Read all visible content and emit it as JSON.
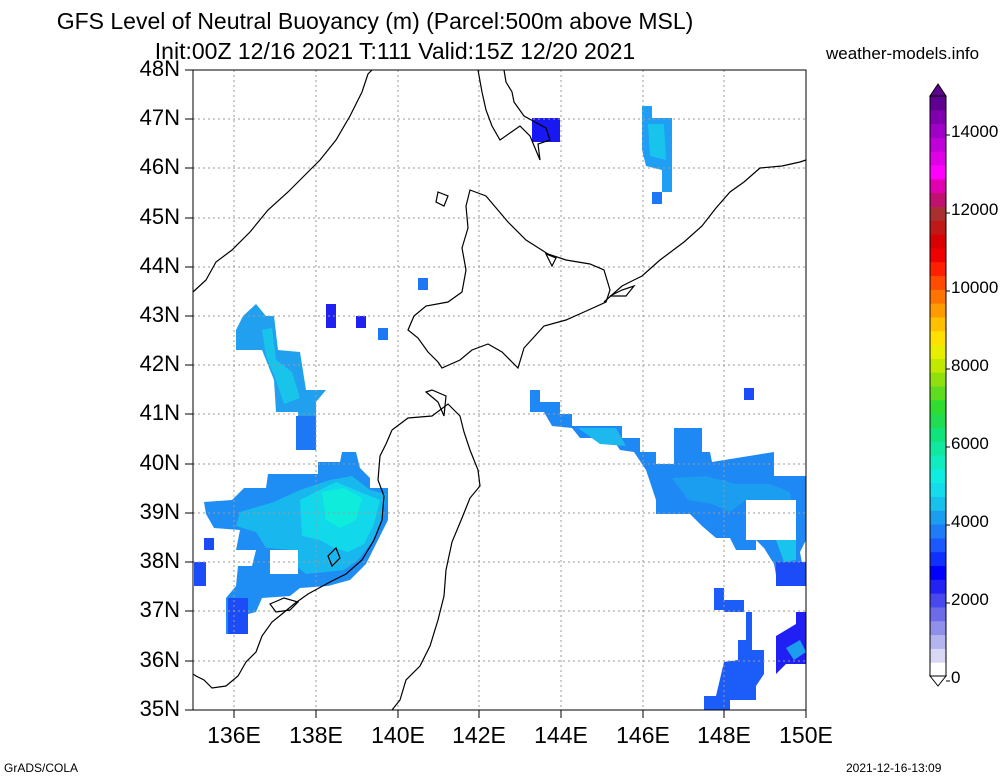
{
  "title_line1": "GFS Level of Neutral Buoyancy (m) (Parcel:500m above MSL)",
  "title_line2": "Init:00Z 12/16 2021 T:111 Valid:15Z 12/20 2021",
  "site": "weather-models.info",
  "lat_labels": [
    "48N",
    "47N",
    "46N",
    "45N",
    "44N",
    "43N",
    "42N",
    "41N",
    "40N",
    "39N",
    "38N",
    "37N",
    "36N",
    "35N"
  ],
  "lon_labels": [
    "136E",
    "138E",
    "140E",
    "142E",
    "144E",
    "146E",
    "148E",
    "150E"
  ],
  "colorbar_labels": [
    "14000",
    "12000",
    "10000",
    "8000",
    "6000",
    "4000",
    "2000",
    "0"
  ],
  "colorbar_colors": [
    "#ffffff",
    "#d8d8f4",
    "#b4b4ee",
    "#9090ea",
    "#6c6ce8",
    "#4848ec",
    "#2222f2",
    "#0000ff",
    "#1030ff",
    "#1c58ff",
    "#1e7cf6",
    "#1c9ef0",
    "#18c0ec",
    "#14dcec",
    "#10ece0",
    "#10ecc0",
    "#10e8a0",
    "#10e27c",
    "#20dc50",
    "#30dc30",
    "#60dc20",
    "#90e010",
    "#c0e800",
    "#e8ee00",
    "#ffe000",
    "#ffc000",
    "#ff9a00",
    "#ff7400",
    "#ff4c00",
    "#ff2000",
    "#f00000",
    "#d80000",
    "#c01818",
    "#a83030",
    "#c01070",
    "#e000b0",
    "#ff00ff",
    "#e000e8",
    "#c000d8",
    "#a000c8",
    "#8000b0",
    "#600090"
  ],
  "footer_left": "GrADS/COLA",
  "footer_right": "2021-12-16-13:09",
  "map_extent": {
    "lon_min": 135,
    "lon_max": 150,
    "lat_min": 35,
    "lat_max": 48
  }
}
